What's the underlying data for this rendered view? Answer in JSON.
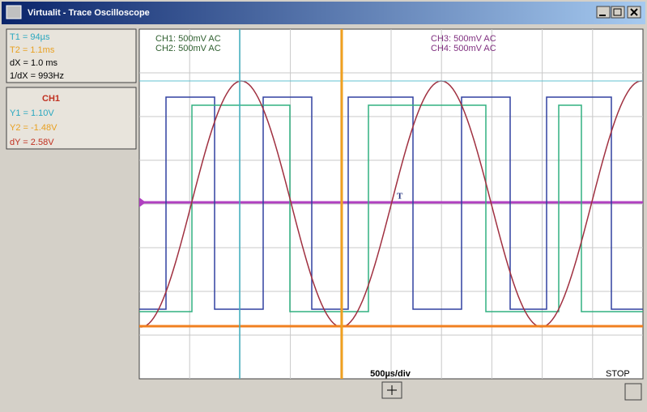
{
  "window": {
    "title": "Virtualit - Trace Oscilloscope"
  },
  "time_cursors": {
    "t1": "T1 = 94µs",
    "t2": "T2 = 1.1ms",
    "dx": "dX = 1.0 ms",
    "freq": "1/dX = 993Hz"
  },
  "volt_cursors": {
    "channel": "CH1",
    "y1": "Y1 = 1.10V",
    "y2": "Y2 = -1.48V",
    "dy": "dY = 2.58V"
  },
  "channels": {
    "ch1": "CH1: 500mV AC",
    "ch2": "CH2: 500mV AC",
    "ch3": "CH3: 500mV AC",
    "ch4": "CH4: 500mV AC"
  },
  "trigger_marker": "T",
  "timebase": "500µs/div",
  "status": "STOP"
}
